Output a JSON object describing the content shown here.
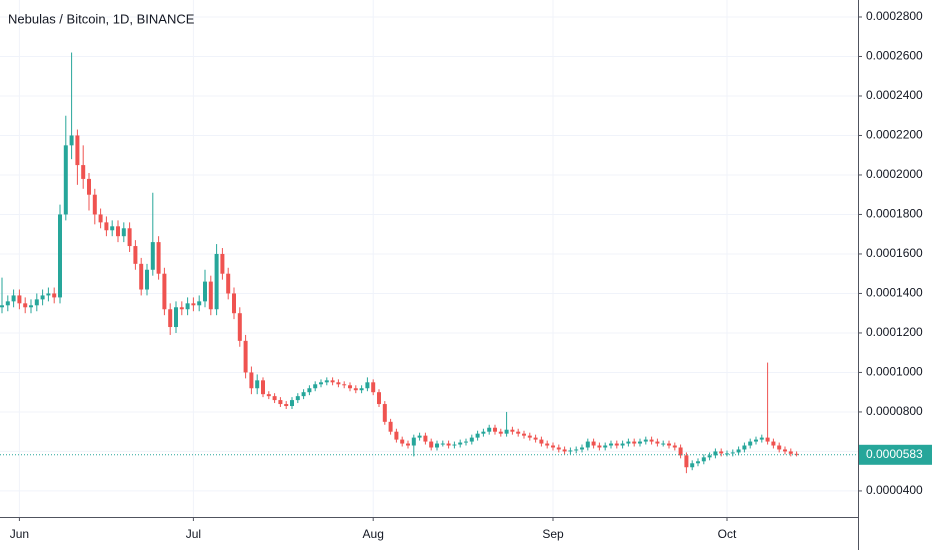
{
  "chart_data": {
    "type": "candlestick",
    "title": "Nebulas / Bitcoin, 1D, BINANCE",
    "categories": [
      null,
      null,
      null,
      "Jun",
      null,
      null,
      null,
      null,
      null,
      null,
      null,
      null,
      null,
      null,
      null,
      null,
      null,
      null,
      null,
      null,
      null,
      null,
      null,
      null,
      null,
      null,
      null,
      null,
      null,
      null,
      null,
      null,
      null,
      "Jul",
      null,
      null,
      null,
      null,
      null,
      null,
      null,
      null,
      null,
      null,
      null,
      null,
      null,
      null,
      null,
      null,
      null,
      null,
      null,
      null,
      null,
      null,
      null,
      null,
      null,
      null,
      null,
      null,
      null,
      null,
      "Aug",
      null,
      null,
      null,
      null,
      null,
      null,
      null,
      null,
      null,
      null,
      null,
      null,
      null,
      null,
      null,
      null,
      null,
      null,
      null,
      null,
      null,
      null,
      null,
      null,
      null,
      null,
      null,
      null,
      null,
      null,
      "Sep",
      null,
      null,
      null,
      null,
      null,
      null,
      null,
      null,
      null,
      null,
      null,
      null,
      null,
      null,
      null,
      null,
      null,
      null,
      null,
      null,
      null,
      null,
      null,
      null,
      null,
      null,
      null,
      null,
      null,
      "Oct",
      null,
      null,
      null,
      null,
      null,
      null,
      null,
      null,
      null,
      null,
      null,
      null
    ],
    "open": [
      0.000133,
      0.000134,
      0.000136,
      0.000139,
      0.000135,
      0.000133,
      0.000134,
      0.000137,
      0.000139,
      0.00014,
      0.000138,
      0.00018,
      0.000215,
      0.00022,
      0.000205,
      0.000198,
      0.00019,
      0.00018,
      0.000176,
      0.000172,
      0.000174,
      0.000169,
      0.000173,
      0.000164,
      0.000155,
      0.000142,
      0.000152,
      0.000166,
      0.00015,
      0.000132,
      0.000123,
      0.000133,
      0.000132,
      0.000135,
      0.000134,
      0.000136,
      0.000146,
      0.000132,
      0.00016,
      0.00015,
      0.00014,
      0.00013,
      0.000116,
      0.0001,
      9.2e-05,
      9.6e-05,
      8.9e-05,
      8.8e-05,
      8.6e-05,
      8.4e-05,
      8.3e-05,
      8.6e-05,
      8.8e-05,
      9e-05,
      9.2e-05,
      9.4e-05,
      9.5e-05,
      9.6e-05,
      9.5e-05,
      9.4e-05,
      9.35e-05,
      9.2e-05,
      9.1e-05,
      9.2e-05,
      9.5e-05,
      9e-05,
      8.4e-05,
      7.5e-05,
      7e-05,
      6.6e-05,
      6.4e-05,
      6.3e-05,
      6.7e-05,
      6.8e-05,
      6.5e-05,
      6.2e-05,
      6.4e-05,
      6.4e-05,
      6.3e-05,
      6.35e-05,
      6.45e-05,
      6.5e-05,
      6.7e-05,
      6.9e-05,
      7e-05,
      7.2e-05,
      7e-05,
      6.9e-05,
      7.1e-05,
      7e-05,
      6.9e-05,
      6.8e-05,
      6.7e-05,
      6.6e-05,
      6.4e-05,
      6.3e-05,
      6.2e-05,
      6.1e-05,
      6e-05,
      6.05e-05,
      6.1e-05,
      6.2e-05,
      6.5e-05,
      6.3e-05,
      6.2e-05,
      6.3e-05,
      6.4e-05,
      6.3e-05,
      6.4e-05,
      6.5e-05,
      6.4e-05,
      6.5e-05,
      6.6e-05,
      6.5e-05,
      6.4e-05,
      6.4e-05,
      6.3e-05,
      6.2e-05,
      5.8e-05,
      5.2e-05,
      5.4e-05,
      5.5e-05,
      5.7e-05,
      5.8e-05,
      6e-05,
      5.9e-05,
      5.9e-05,
      5.95e-05,
      6.1e-05,
      6.3e-05,
      6.5e-05,
      6.6e-05,
      6.7e-05,
      6.5e-05,
      6.3e-05,
      6.1e-05,
      6e-05,
      5.88e-05
    ],
    "high": [
      0.000148,
      0.000139,
      0.000142,
      0.000142,
      0.000138,
      0.000137,
      0.00014,
      0.000142,
      0.000143,
      0.000143,
      0.000185,
      0.00023,
      0.000262,
      0.000223,
      0.000215,
      0.000201,
      0.000193,
      0.000183,
      0.000179,
      0.000177,
      0.000177,
      0.000176,
      0.000176,
      0.000167,
      0.000158,
      0.000155,
      0.000191,
      0.000169,
      0.000153,
      0.000135,
      0.000136,
      0.000136,
      0.000138,
      0.000138,
      0.000139,
      0.000152,
      0.000149,
      0.000165,
      0.000163,
      0.000153,
      0.000143,
      0.000133,
      0.000119,
      0.000103,
      9.9e-05,
      9.75e-05,
      9.05e-05,
      8.95e-05,
      8.75e-05,
      8.55e-05,
      8.75e-05,
      8.95e-05,
      9.15e-05,
      9.35e-05,
      9.55e-05,
      9.65e-05,
      9.75e-05,
      9.75e-05,
      9.65e-05,
      9.55e-05,
      9.5e-05,
      9.35e-05,
      9.35e-05,
      9.75e-05,
      9.65e-05,
      9.15e-05,
      8.55e-05,
      7.65e-05,
      7.15e-05,
      6.75e-05,
      6.55e-05,
      6.85e-05,
      6.95e-05,
      6.95e-05,
      6.65e-05,
      6.55e-05,
      6.55e-05,
      6.55e-05,
      6.5e-05,
      6.6e-05,
      6.65e-05,
      6.85e-05,
      7.05e-05,
      7.15e-05,
      7.35e-05,
      7.35e-05,
      7.15e-05,
      8e-05,
      7.25e-05,
      7.15e-05,
      7.05e-05,
      6.95e-05,
      6.85e-05,
      6.75e-05,
      6.55e-05,
      6.45e-05,
      6.35e-05,
      6.25e-05,
      6.2e-05,
      6.25e-05,
      6.35e-05,
      6.65e-05,
      6.65e-05,
      6.45e-05,
      6.45e-05,
      6.55e-05,
      6.55e-05,
      6.55e-05,
      6.65e-05,
      6.65e-05,
      6.65e-05,
      6.75e-05,
      6.75e-05,
      6.65e-05,
      6.55e-05,
      6.55e-05,
      6.45e-05,
      6.35e-05,
      5.95e-05,
      5.55e-05,
      5.65e-05,
      5.85e-05,
      5.95e-05,
      6.15e-05,
      6.15e-05,
      6.05e-05,
      6.1e-05,
      6.25e-05,
      6.45e-05,
      6.65e-05,
      6.75e-05,
      6.85e-05,
      0.000105,
      6.65e-05,
      6.45e-05,
      6.25e-05,
      6.15e-05,
      6e-05
    ],
    "low": [
      0.00013,
      0.000131,
      0.000133,
      0.000132,
      0.00013,
      0.00013,
      0.000131,
      0.000134,
      0.000136,
      0.000135,
      0.000135,
      0.000177,
      0.000208,
      0.000195,
      0.000193,
      0.000182,
      0.000175,
      0.000173,
      0.000169,
      0.000169,
      0.000166,
      0.000166,
      0.000161,
      0.000152,
      0.000139,
      0.000139,
      0.000149,
      0.000147,
      0.000129,
      0.000119,
      0.00012,
      0.000129,
      0.000129,
      0.000131,
      0.000131,
      0.000133,
      0.000129,
      0.000129,
      0.000147,
      0.000137,
      0.000127,
      0.000113,
      9.7e-05,
      8.9e-05,
      8.9e-05,
      8.75e-05,
      8.65e-05,
      8.45e-05,
      8.25e-05,
      8.15e-05,
      8.15e-05,
      8.45e-05,
      8.65e-05,
      8.85e-05,
      9.05e-05,
      9.25e-05,
      9.35e-05,
      9.35e-05,
      9.25e-05,
      9.2e-05,
      9.05e-05,
      8.95e-05,
      8.95e-05,
      9.05e-05,
      8.85e-05,
      8.25e-05,
      7.35e-05,
      6.85e-05,
      6.45e-05,
      6.25e-05,
      6.15e-05,
      5.75e-05,
      6.55e-05,
      6.35e-05,
      6.05e-05,
      6.05e-05,
      6.25e-05,
      6.15e-05,
      6.15e-05,
      6.2e-05,
      6.3e-05,
      6.35e-05,
      6.55e-05,
      6.75e-05,
      6.85e-05,
      6.85e-05,
      6.75e-05,
      6.75e-05,
      6.85e-05,
      6.75e-05,
      6.65e-05,
      6.55e-05,
      6.45e-05,
      6.25e-05,
      6.15e-05,
      6.05e-05,
      5.95e-05,
      5.85e-05,
      5.85e-05,
      5.9e-05,
      5.95e-05,
      6.05e-05,
      6.15e-05,
      6.05e-05,
      6.05e-05,
      6.15e-05,
      6.15e-05,
      6.15e-05,
      6.25e-05,
      6.25e-05,
      6.25e-05,
      6.35e-05,
      6.35e-05,
      6.25e-05,
      6.25e-05,
      6.15e-05,
      6.05e-05,
      5.65e-05,
      4.9e-05,
      5.05e-05,
      5.25e-05,
      5.35e-05,
      5.55e-05,
      5.65e-05,
      5.75e-05,
      5.75e-05,
      5.75e-05,
      5.8e-05,
      5.95e-05,
      6.15e-05,
      6.35e-05,
      6.45e-05,
      6.35e-05,
      6.15e-05,
      5.95e-05,
      5.85e-05,
      5.75e-05,
      5.75e-05
    ],
    "close": [
      0.000134,
      0.000136,
      0.000139,
      0.000135,
      0.000133,
      0.000134,
      0.000137,
      0.000139,
      0.00014,
      0.000138,
      0.00018,
      0.000215,
      0.00022,
      0.000205,
      0.000198,
      0.00019,
      0.00018,
      0.000176,
      0.000172,
      0.000174,
      0.000169,
      0.000173,
      0.000164,
      0.000155,
      0.000142,
      0.000152,
      0.000166,
      0.00015,
      0.000132,
      0.000123,
      0.000133,
      0.000132,
      0.000135,
      0.000134,
      0.000136,
      0.000146,
      0.000132,
      0.00016,
      0.00015,
      0.00014,
      0.00013,
      0.000116,
      0.0001,
      9.2e-05,
      9.6e-05,
      8.9e-05,
      8.8e-05,
      8.6e-05,
      8.4e-05,
      8.3e-05,
      8.6e-05,
      8.8e-05,
      9e-05,
      9.2e-05,
      9.4e-05,
      9.5e-05,
      9.6e-05,
      9.5e-05,
      9.4e-05,
      9.35e-05,
      9.2e-05,
      9.1e-05,
      9.2e-05,
      9.5e-05,
      9e-05,
      8.4e-05,
      7.5e-05,
      7e-05,
      6.6e-05,
      6.4e-05,
      6.3e-05,
      6.7e-05,
      6.8e-05,
      6.5e-05,
      6.2e-05,
      6.4e-05,
      6.4e-05,
      6.3e-05,
      6.35e-05,
      6.45e-05,
      6.5e-05,
      6.7e-05,
      6.9e-05,
      7e-05,
      7.2e-05,
      7e-05,
      6.9e-05,
      7.1e-05,
      7e-05,
      6.9e-05,
      6.8e-05,
      6.7e-05,
      6.6e-05,
      6.4e-05,
      6.3e-05,
      6.2e-05,
      6.1e-05,
      6e-05,
      6.05e-05,
      6.1e-05,
      6.2e-05,
      6.5e-05,
      6.3e-05,
      6.2e-05,
      6.3e-05,
      6.4e-05,
      6.3e-05,
      6.4e-05,
      6.5e-05,
      6.4e-05,
      6.5e-05,
      6.6e-05,
      6.5e-05,
      6.4e-05,
      6.4e-05,
      6.3e-05,
      6.2e-05,
      5.8e-05,
      5.2e-05,
      5.4e-05,
      5.5e-05,
      5.7e-05,
      5.8e-05,
      6e-05,
      5.9e-05,
      5.9e-05,
      5.95e-05,
      6.1e-05,
      6.3e-05,
      6.5e-05,
      6.6e-05,
      6.7e-05,
      6.5e-05,
      6.3e-05,
      6.1e-05,
      6e-05,
      5.88e-05,
      5.83e-05
    ],
    "up_color": "#26a69a",
    "down_color": "#ef5350",
    "ylim": [
      2.68e-05,
      0.0002886
    ],
    "yticks": [
      {
        "value": 4e-05,
        "label": "0.0000400"
      },
      {
        "value": 6e-05,
        "label": "0.0000600"
      },
      {
        "value": 8e-05,
        "label": "0.0000800"
      },
      {
        "value": 0.0001,
        "label": "0.0001000"
      },
      {
        "value": 0.00012,
        "label": "0.0001200"
      },
      {
        "value": 0.00014,
        "label": "0.0001400"
      },
      {
        "value": 0.00016,
        "label": "0.0001600"
      },
      {
        "value": 0.00018,
        "label": "0.0001800"
      },
      {
        "value": 0.0002,
        "label": "0.0002000"
      },
      {
        "value": 0.00022,
        "label": "0.0002200"
      },
      {
        "value": 0.00024,
        "label": "0.0002400"
      },
      {
        "value": 0.00026,
        "label": "0.0002600"
      },
      {
        "value": 0.00028,
        "label": "0.0002800"
      }
    ],
    "last_price": {
      "value": 5.83e-05,
      "label": "0.0000583"
    },
    "grid": true
  }
}
